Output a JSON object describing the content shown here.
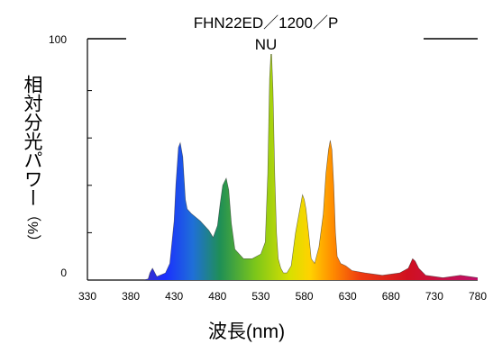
{
  "chart_data": {
    "type": "area",
    "title_line1": "FHN22ED／1200／P",
    "title_line2": "NU",
    "ylabel_main": "相対分光パワー",
    "ylabel_unit": "（%）",
    "xlabel": "波長(nm)",
    "xlim": [
      330,
      780
    ],
    "ylim": [
      0,
      100
    ],
    "ytick_labels": [
      "0",
      "100"
    ],
    "xticks": [
      "330",
      "380",
      "430",
      "480",
      "530",
      "580",
      "630",
      "680",
      "730",
      "780"
    ],
    "grid": false,
    "fill": "spectral-gradient",
    "x": [
      330,
      380,
      395,
      400,
      402,
      405,
      410,
      420,
      425,
      430,
      432,
      435,
      437,
      440,
      443,
      445,
      450,
      460,
      470,
      475,
      480,
      483,
      486,
      490,
      493,
      496,
      500,
      510,
      520,
      530,
      535,
      538,
      540,
      542,
      544,
      546,
      548,
      550,
      553,
      556,
      560,
      565,
      570,
      575,
      578,
      580,
      582,
      585,
      588,
      592,
      597,
      602,
      605,
      608,
      610,
      612,
      614,
      616,
      618,
      622,
      628,
      635,
      650,
      670,
      690,
      700,
      705,
      708,
      712,
      720,
      740,
      760,
      780
    ],
    "values": [
      0,
      0,
      0,
      0.5,
      3,
      5,
      1.5,
      3,
      7,
      25,
      40,
      56,
      58,
      52,
      34,
      30,
      28,
      25,
      21,
      18,
      23,
      32,
      40,
      43,
      38,
      24,
      13,
      9,
      9,
      11,
      16,
      45,
      85,
      99,
      80,
      45,
      20,
      9,
      5,
      3,
      3,
      6,
      20,
      30,
      36,
      34,
      30,
      20,
      9,
      7,
      14,
      28,
      45,
      55,
      59,
      55,
      40,
      20,
      10,
      7,
      6,
      4,
      3,
      2,
      3,
      5,
      9,
      8,
      5,
      2,
      1,
      2,
      1
    ]
  }
}
